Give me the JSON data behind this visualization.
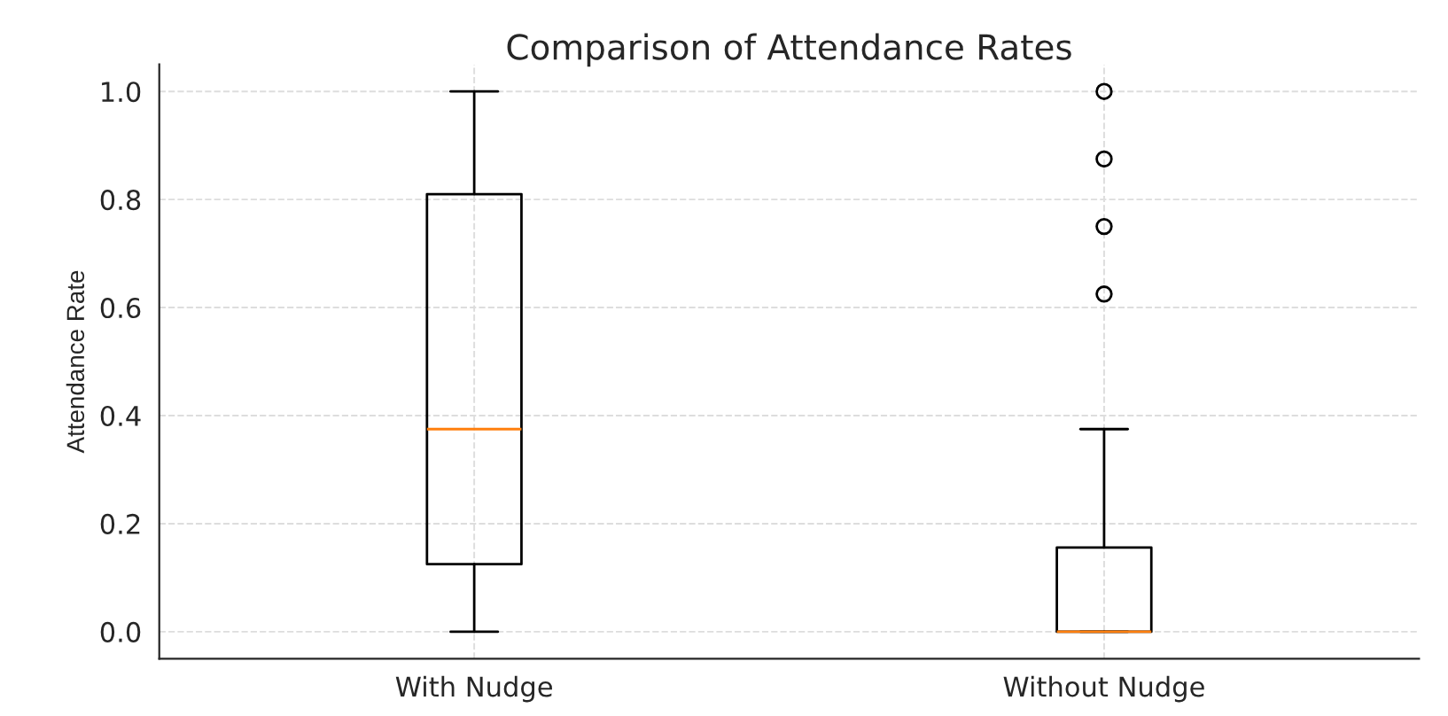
{
  "chart_data": {
    "type": "box",
    "title": "Comparison of Attendance Rates",
    "ylabel": "Attendance Rate",
    "categories": [
      "With Nudge",
      "Without Nudge"
    ],
    "boxes": [
      {
        "low": 0,
        "q1": 0.125,
        "median": 0.375,
        "q3": 0.81,
        "high": 1.0
      },
      {
        "low": 0,
        "q1": 0,
        "median": 0,
        "q3": 0.156,
        "high": 0.375,
        "outliers": [
          0.625,
          0.75,
          0.875,
          1.0
        ]
      }
    ],
    "ylim": [
      -0.05,
      1.05
    ],
    "yticks": [
      {
        "value": 0,
        "label": "0.0"
      },
      {
        "value": 0.2,
        "label": "0.2"
      },
      {
        "value": 0.4,
        "label": "0.4"
      },
      {
        "value": 0.6,
        "label": "0.6"
      },
      {
        "value": 0.8,
        "label": "0.8"
      },
      {
        "value": 1,
        "label": "1.0"
      }
    ],
    "grid": true
  }
}
